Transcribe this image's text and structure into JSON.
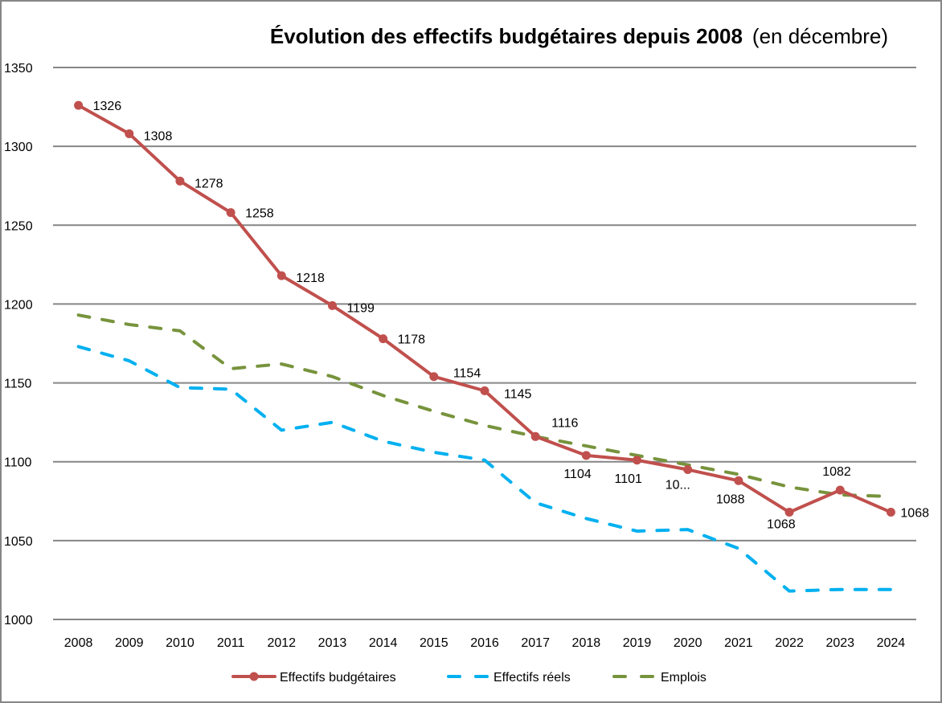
{
  "chart_data": {
    "type": "line",
    "title": "Évolution des effectifs budgétaires depuis 2008",
    "title_suffix": "(en décembre)",
    "xlabel": "",
    "ylabel": "",
    "categories": [
      "2008",
      "2009",
      "2010",
      "2011",
      "2012",
      "2013",
      "2014",
      "2015",
      "2016",
      "2017",
      "2018",
      "2019",
      "2020",
      "2021",
      "2022",
      "2023",
      "2024"
    ],
    "ylim": [
      1000,
      1350
    ],
    "yticks": [
      1000,
      1050,
      1100,
      1150,
      1200,
      1250,
      1300,
      1350
    ],
    "grid": true,
    "legend_position": "bottom",
    "series": [
      {
        "name": "Effectifs budgétaires",
        "color": "#C0504D",
        "style": "solid-markers",
        "values": [
          1326,
          1308,
          1278,
          1258,
          1218,
          1199,
          1178,
          1154,
          1145,
          1116,
          1104,
          1101,
          1095,
          1088,
          1068,
          1082,
          1068
        ],
        "data_labels": [
          "1326",
          "1308",
          "1278",
          "1258",
          "1218",
          "1199",
          "1178",
          "1154",
          "1145",
          "1116",
          "1104",
          "1101",
          "10...",
          "1088",
          "1068",
          "1082",
          "1068"
        ]
      },
      {
        "name": "Effectifs réels",
        "color": "#00B0F0",
        "style": "dashed",
        "values": [
          1173,
          1164,
          1147,
          1146,
          1120,
          1125,
          1113,
          1106,
          1101,
          1074,
          1064,
          1056,
          1057,
          1045,
          1018,
          1019,
          1019
        ]
      },
      {
        "name": "Emplois",
        "color": "#77933C",
        "style": "dashed",
        "values": [
          1193,
          1187,
          1183,
          1159,
          1162,
          1154,
          1142,
          1132,
          1123,
          1116,
          1110,
          1104,
          1098,
          1092,
          1084,
          1079,
          1078
        ]
      }
    ]
  }
}
